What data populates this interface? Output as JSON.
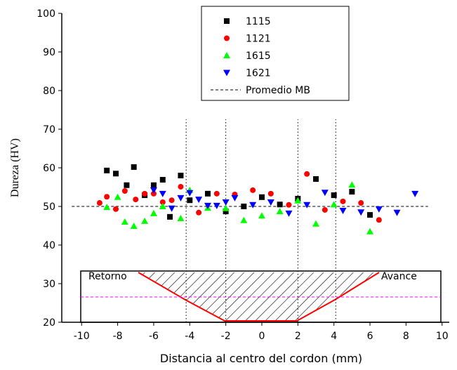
{
  "chart_data": {
    "type": "scatter",
    "xlabel": "Distancia al centro del cordon (mm)",
    "ylabel": "Dureza (HV)",
    "xlim": [
      -11.1,
      10.4
    ],
    "ylim": [
      20,
      100
    ],
    "xticks": [
      -10,
      -8,
      -6,
      -4,
      -2,
      0,
      2,
      4,
      6,
      8,
      10
    ],
    "yticks": [
      20,
      30,
      40,
      50,
      60,
      70,
      80,
      90,
      100
    ],
    "reference_line": {
      "name": "Promedio MB",
      "value": 50
    },
    "vertical_lines": [
      -4.2,
      -2.0,
      2.0,
      4.1
    ],
    "annotations": {
      "left": "Retorno",
      "right": "Avance"
    },
    "series": [
      {
        "name": "1115",
        "color": "#000000",
        "marker": "square",
        "x": [
          -8.6,
          -8.1,
          -7.5,
          -7.1,
          -6.5,
          -6.0,
          -5.5,
          -5.1,
          -4.5,
          -4.0,
          -3.0,
          -2.0,
          -1.0,
          0.0,
          1.0,
          2.0,
          3.0,
          4.0,
          5.0,
          6.0
        ],
        "values": [
          59.3,
          58.5,
          55.5,
          60.2,
          52.9,
          55.5,
          56.9,
          47.3,
          58.0,
          51.6,
          53.3,
          48.7,
          50.0,
          52.4,
          50.5,
          52.0,
          57.1,
          52.9,
          53.8,
          47.8
        ]
      },
      {
        "name": "1121",
        "color": "#ff0000",
        "marker": "circle",
        "x": [
          -9.0,
          -8.6,
          -8.1,
          -7.6,
          -7.0,
          -6.5,
          -6.0,
          -5.5,
          -5.0,
          -4.5,
          -3.5,
          -2.5,
          -1.5,
          -0.5,
          0.5,
          1.5,
          2.5,
          3.5,
          4.5,
          5.5,
          6.5
        ],
        "values": [
          50.9,
          52.5,
          49.3,
          54.0,
          51.8,
          53.3,
          53.3,
          51.1,
          51.6,
          55.1,
          48.4,
          53.3,
          53.1,
          54.2,
          53.3,
          50.4,
          58.4,
          49.1,
          51.3,
          50.9,
          46.5
        ]
      },
      {
        "name": "1615",
        "color": "#00ff00",
        "marker": "triangle-up",
        "x": [
          -8.6,
          -8.0,
          -7.6,
          -7.1,
          -6.5,
          -6.0,
          -5.5,
          -4.5,
          -4.0,
          -3.0,
          -2.0,
          -1.0,
          0.0,
          1.0,
          2.0,
          3.0,
          4.0,
          5.0,
          6.0
        ],
        "values": [
          49.8,
          52.4,
          46.0,
          44.9,
          46.2,
          48.2,
          50.0,
          46.9,
          54.2,
          49.6,
          49.5,
          46.4,
          47.6,
          48.7,
          51.5,
          45.5,
          50.5,
          55.6,
          43.5
        ]
      },
      {
        "name": "1621",
        "color": "#0000ff",
        "marker": "triangle-down",
        "x": [
          -6.0,
          -5.5,
          -5.0,
          -4.5,
          -4.0,
          -3.5,
          -3.0,
          -2.5,
          -2.0,
          -1.5,
          -0.5,
          0.5,
          1.5,
          2.5,
          3.5,
          4.5,
          5.5,
          6.5,
          7.5,
          8.5
        ],
        "values": [
          54.2,
          53.3,
          49.5,
          52.2,
          53.5,
          51.8,
          50.2,
          50.2,
          51.1,
          52.2,
          50.4,
          51.1,
          48.2,
          50.4,
          53.6,
          48.9,
          48.5,
          49.3,
          48.4,
          53.3
        ]
      }
    ]
  }
}
